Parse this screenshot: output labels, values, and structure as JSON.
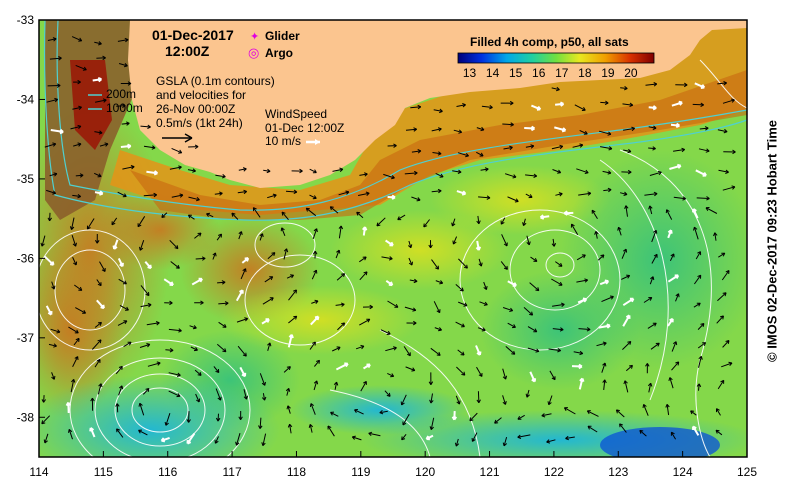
{
  "map": {
    "date_label": "01-Dec-2017",
    "time_label": "12:00Z",
    "legend": {
      "glider_symbol": "✦",
      "glider_label": "Glider",
      "argo_symbol": "◎",
      "argo_label": "Argo",
      "glider_color": "#e000e0",
      "argo_color": "#e000e0"
    },
    "colorbar": {
      "title": "Filled 4h comp, p50, all sats",
      "ticks": [
        "13",
        "14",
        "15",
        "16",
        "17",
        "18",
        "19",
        "20"
      ],
      "min": 12.5,
      "max": 21
    },
    "isobaths": {
      "label_200": "200m",
      "label_1000": "1000m",
      "color": "#4fd0d0"
    },
    "gsla": {
      "line1": "GSLA (0.1m contours)",
      "line2": "and velocities for",
      "line3": "26-Nov 00:00Z",
      "scale_label": "0.5m/s (1kt 24h)"
    },
    "wind": {
      "title": "WindSpeed",
      "time": "01-Dec 12:00Z",
      "scale_label": "10 m/s"
    },
    "axes": {
      "x_ticks": [
        "114",
        "115",
        "116",
        "117",
        "118",
        "119",
        "120",
        "121",
        "122",
        "123",
        "124",
        "125"
      ],
      "y_ticks": [
        "-33",
        "-34",
        "-35",
        "-36",
        "-37",
        "-38"
      ],
      "lon_range": [
        114,
        125
      ],
      "lat_range": [
        -38.5,
        -33
      ]
    },
    "credit": "© IMOS 02-Dec-2017 09:23 Hobart Time",
    "colors": {
      "land": "#fbc58f",
      "border": "#000000",
      "contour": "#ffffff"
    }
  }
}
